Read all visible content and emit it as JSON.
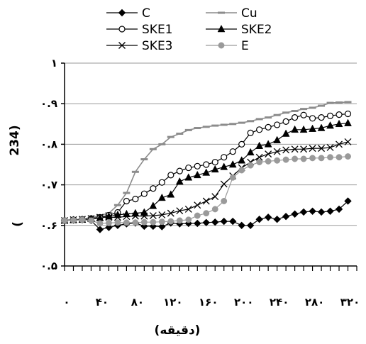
{
  "chart_data": {
    "type": "line",
    "title": "",
    "xlabel": "(دقیقه)",
    "ylabel": "234)",
    "ylabel_paren": "(",
    "xlim": [
      0,
      330
    ],
    "ylim": [
      0.5,
      1.0
    ],
    "x_tick_values": [
      0,
      40,
      80,
      120,
      160,
      200,
      240,
      280,
      320
    ],
    "x_tick_labels": [
      "۰",
      "۴۰",
      "۸۰",
      "۱۲۰",
      "۱۶۰",
      "۲۰۰",
      "۲۴۰",
      "۲۸۰",
      "۳۲۰"
    ],
    "y_tick_values": [
      0.5,
      0.6,
      0.7,
      0.8,
      0.9,
      1.0
    ],
    "y_tick_labels": [
      "۰.۵",
      "۰.۶",
      "۰.۷",
      "۰.۸",
      "۰.۹",
      "۱"
    ],
    "grid": "horizontal",
    "legend_position": "top",
    "series": [
      {
        "name": "C",
        "color": "#000000",
        "marker": "diamond",
        "x": [
          0,
          10,
          20,
          30,
          40,
          50,
          60,
          70,
          80,
          90,
          100,
          110,
          120,
          130,
          140,
          150,
          160,
          170,
          180,
          190,
          200,
          210,
          220,
          230,
          240,
          250,
          260,
          270,
          280,
          290,
          300,
          310,
          320
        ],
        "y": [
          0.612,
          0.613,
          0.614,
          0.612,
          0.59,
          0.595,
          0.6,
          0.604,
          0.606,
          0.598,
          0.598,
          0.597,
          0.606,
          0.604,
          0.605,
          0.605,
          0.607,
          0.608,
          0.61,
          0.61,
          0.6,
          0.6,
          0.615,
          0.62,
          0.615,
          0.622,
          0.628,
          0.633,
          0.635,
          0.633,
          0.635,
          0.64,
          0.66
        ]
      },
      {
        "name": "Cu",
        "color": "#8c8c8c",
        "marker": "dash",
        "x": [
          0,
          10,
          20,
          30,
          40,
          50,
          60,
          70,
          80,
          90,
          100,
          110,
          120,
          130,
          140,
          150,
          160,
          170,
          180,
          190,
          200,
          210,
          220,
          230,
          240,
          250,
          260,
          270,
          280,
          290,
          300,
          310,
          320
        ],
        "y": [
          0.612,
          0.614,
          0.615,
          0.618,
          0.625,
          0.63,
          0.65,
          0.68,
          0.732,
          0.763,
          0.788,
          0.8,
          0.818,
          0.826,
          0.835,
          0.84,
          0.843,
          0.846,
          0.848,
          0.85,
          0.853,
          0.857,
          0.862,
          0.866,
          0.872,
          0.878,
          0.882,
          0.887,
          0.89,
          0.895,
          0.902,
          0.903,
          0.904
        ]
      },
      {
        "name": "SKE1",
        "color": "#000000",
        "marker": "circle",
        "x": [
          0,
          10,
          20,
          30,
          40,
          50,
          60,
          70,
          80,
          90,
          100,
          110,
          120,
          130,
          140,
          150,
          160,
          170,
          180,
          190,
          200,
          210,
          220,
          230,
          240,
          250,
          260,
          270,
          280,
          290,
          300,
          310,
          320
        ],
        "y": [
          0.612,
          0.614,
          0.615,
          0.617,
          0.62,
          0.625,
          0.632,
          0.66,
          0.665,
          0.678,
          0.691,
          0.706,
          0.724,
          0.734,
          0.742,
          0.746,
          0.75,
          0.756,
          0.768,
          0.782,
          0.8,
          0.828,
          0.836,
          0.842,
          0.848,
          0.856,
          0.866,
          0.872,
          0.864,
          0.866,
          0.87,
          0.873,
          0.875
        ]
      },
      {
        "name": "SKE2",
        "color": "#000000",
        "marker": "triangle",
        "x": [
          0,
          10,
          20,
          30,
          40,
          50,
          60,
          70,
          80,
          90,
          100,
          110,
          120,
          130,
          140,
          150,
          160,
          170,
          180,
          190,
          200,
          210,
          220,
          230,
          240,
          250,
          260,
          270,
          280,
          290,
          300,
          310,
          320
        ],
        "y": [
          0.612,
          0.613,
          0.614,
          0.616,
          0.618,
          0.622,
          0.626,
          0.628,
          0.63,
          0.632,
          0.648,
          0.668,
          0.676,
          0.708,
          0.718,
          0.724,
          0.73,
          0.738,
          0.744,
          0.75,
          0.76,
          0.78,
          0.796,
          0.8,
          0.81,
          0.826,
          0.836,
          0.836,
          0.838,
          0.84,
          0.846,
          0.85,
          0.852
        ]
      },
      {
        "name": "SKE3",
        "color": "#000000",
        "marker": "x",
        "x": [
          0,
          10,
          20,
          30,
          40,
          50,
          60,
          70,
          80,
          90,
          100,
          110,
          120,
          130,
          140,
          150,
          160,
          170,
          180,
          190,
          200,
          210,
          220,
          230,
          240,
          250,
          260,
          270,
          280,
          290,
          300,
          310,
          320
        ],
        "y": [
          0.612,
          0.614,
          0.615,
          0.617,
          0.62,
          0.62,
          0.62,
          0.622,
          0.623,
          0.623,
          0.624,
          0.626,
          0.63,
          0.636,
          0.64,
          0.65,
          0.66,
          0.671,
          0.702,
          0.722,
          0.742,
          0.756,
          0.768,
          0.776,
          0.782,
          0.786,
          0.788,
          0.788,
          0.79,
          0.79,
          0.792,
          0.8,
          0.806
        ]
      },
      {
        "name": "E",
        "color": "#9a9a9a",
        "marker": "filled-circle",
        "x": [
          0,
          10,
          20,
          30,
          40,
          50,
          60,
          70,
          80,
          90,
          100,
          110,
          120,
          130,
          140,
          150,
          160,
          170,
          180,
          190,
          200,
          210,
          220,
          230,
          240,
          250,
          260,
          270,
          280,
          290,
          300,
          310,
          320
        ],
        "y": [
          0.612,
          0.613,
          0.614,
          0.612,
          0.605,
          0.606,
          0.607,
          0.607,
          0.607,
          0.608,
          0.608,
          0.609,
          0.61,
          0.612,
          0.614,
          0.624,
          0.63,
          0.64,
          0.66,
          0.718,
          0.736,
          0.748,
          0.756,
          0.758,
          0.76,
          0.762,
          0.764,
          0.764,
          0.766,
          0.766,
          0.768,
          0.768,
          0.77
        ]
      }
    ]
  }
}
